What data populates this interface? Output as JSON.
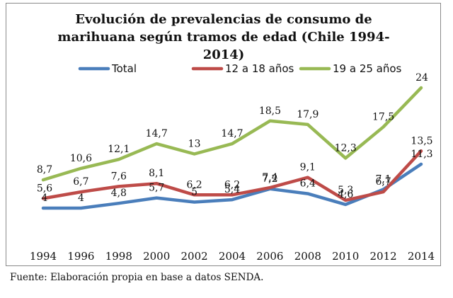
{
  "chart_data": {
    "type": "line",
    "title_lines": [
      "Evolución de prevalencias de consumo  de",
      "marihuana según tramos de edad (Chile 1994-",
      "2014)"
    ],
    "categories": [
      "1994",
      "1996",
      "1998",
      "2000",
      "2002",
      "2004",
      "2006",
      "2008",
      "2010",
      "2012",
      "2014"
    ],
    "ylim": [
      0,
      25
    ],
    "grid": false,
    "legend_position": "top",
    "series": [
      {
        "name": "Total",
        "color": "#4a7ebb",
        "values": [
          4,
          4,
          4.8,
          5.7,
          5,
          5.4,
          7.2,
          6.4,
          4.6,
          7.1,
          11.3
        ],
        "labels": [
          "4",
          "4",
          "4,8",
          "5,7",
          "5",
          "5,4",
          "7,2",
          "6,4",
          "4,6",
          "7,1",
          "11,3"
        ]
      },
      {
        "name": "12 a 18 años",
        "color": "#be4b48",
        "values": [
          5.6,
          6.7,
          7.6,
          8.1,
          6.2,
          6.2,
          7.4,
          9.1,
          5.3,
          6.7,
          13.5
        ],
        "labels": [
          "5,6",
          "6,7",
          "7,6",
          "8,1",
          "6,2",
          "6,2",
          "7,4",
          "9,1",
          "5,3",
          "6,7",
          "13,5"
        ]
      },
      {
        "name": "19 a 25 años",
        "color": "#98b954",
        "values": [
          8.7,
          10.6,
          12.1,
          14.7,
          13,
          14.7,
          18.5,
          17.9,
          12.3,
          17.5,
          24
        ],
        "labels": [
          "8,7",
          "10,6",
          "12,1",
          "14,7",
          "13",
          "14,7",
          "18,5",
          "17,9",
          "12,3",
          "17,5",
          "24"
        ]
      }
    ]
  },
  "source_note": "Fuente: Elaboración propia en base a datos SENDA."
}
